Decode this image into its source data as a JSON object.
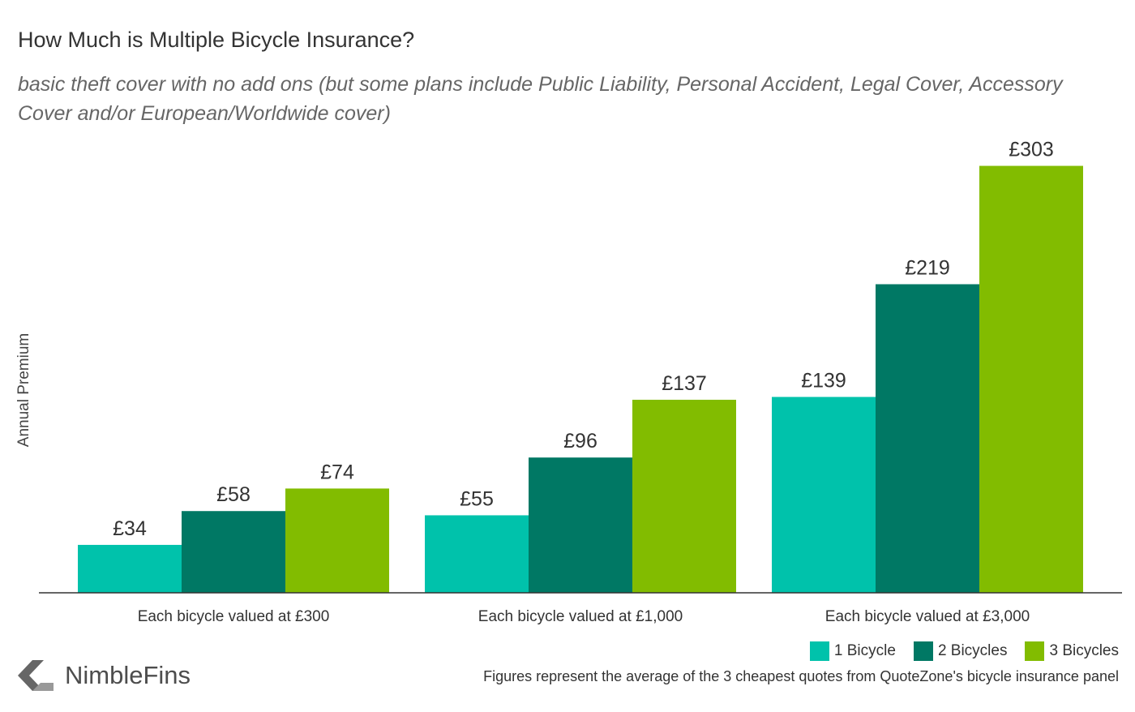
{
  "chart_data": {
    "type": "bar",
    "title": "How Much is Multiple Bicycle Insurance?",
    "subtitle": "basic theft cover with no add ons (but some plans include Public Liability, Personal Accident, Legal Cover, Accessory Cover and/or European/Worldwide cover)",
    "xlabel": "",
    "ylabel": "Annual Premium",
    "ylim": [
      0,
      320
    ],
    "categories": [
      "Each bicycle valued at £300",
      "Each bicycle valued at £1,000",
      "Each bicycle valued at £3,000"
    ],
    "series": [
      {
        "name": "1 Bicycle",
        "color": "#00c2ab",
        "values": [
          34,
          55,
          139
        ],
        "labels": [
          "£34",
          "£55",
          "£139"
        ]
      },
      {
        "name": "2 Bicycles",
        "color": "#007864",
        "values": [
          58,
          96,
          219
        ],
        "labels": [
          "£58",
          "£96",
          "£219"
        ]
      },
      {
        "name": "3 Bicycles",
        "color": "#82bc00",
        "values": [
          74,
          137,
          303
        ],
        "labels": [
          "£74",
          "£137",
          "£303"
        ]
      }
    ],
    "legend_position": "bottom-right",
    "grid": false
  },
  "brand": {
    "name": "NimbleFins"
  },
  "footnote": "Figures represent the average of the 3 cheapest quotes from QuoteZone's bicycle insurance panel"
}
